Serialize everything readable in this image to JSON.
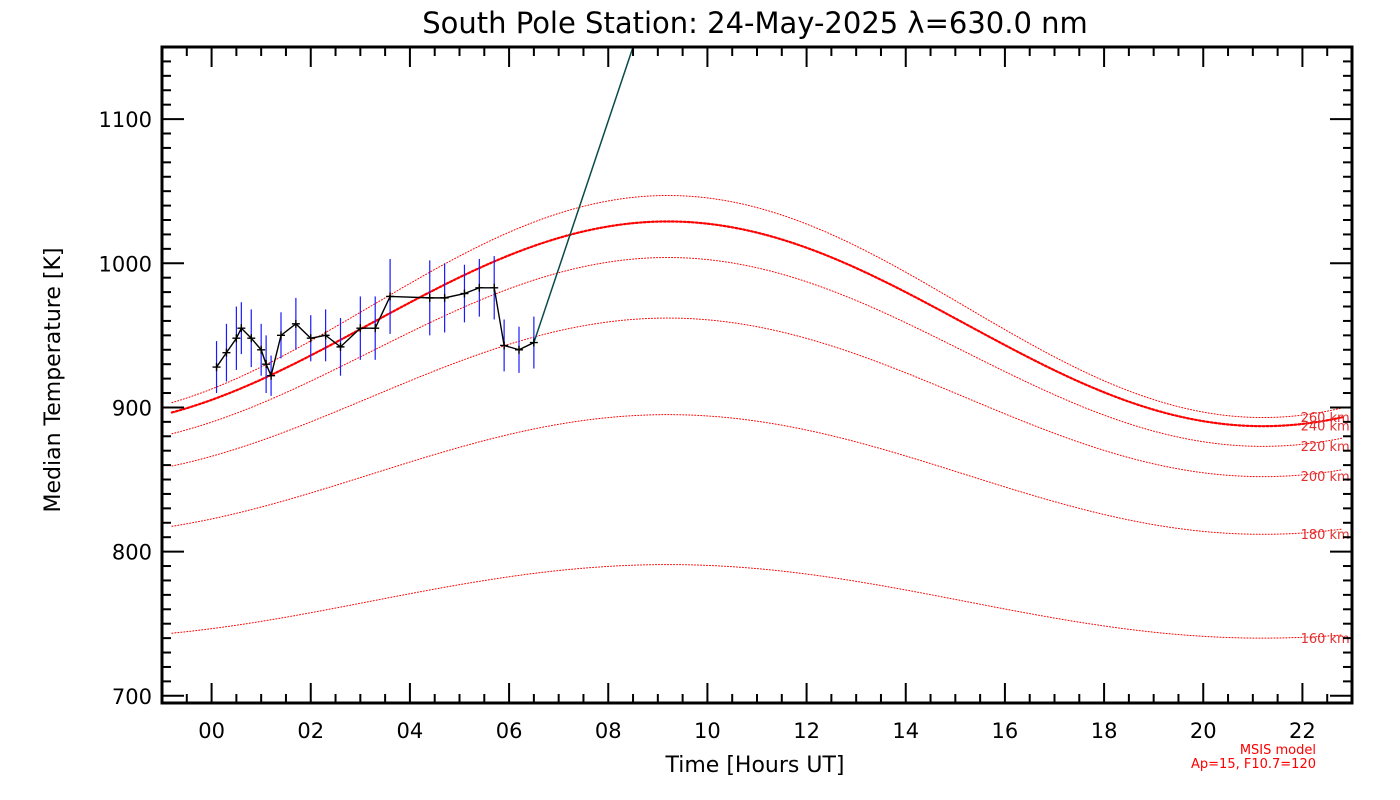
{
  "chart_data": {
    "type": "line",
    "title": "South Pole Station: 24-May-2025 λ=630.0 nm",
    "xlabel": "Time [Hours UT]",
    "ylabel": "Median Temperature [K]",
    "xlim": [
      -1.0,
      23.0
    ],
    "ylim": [
      695,
      1150
    ],
    "x_ticks": [
      0,
      2,
      4,
      6,
      8,
      10,
      12,
      14,
      16,
      18,
      20,
      22
    ],
    "x_tick_labels": [
      "00",
      "02",
      "04",
      "06",
      "08",
      "10",
      "12",
      "14",
      "16",
      "18",
      "20",
      "22"
    ],
    "y_ticks": [
      700,
      800,
      900,
      1000,
      1100
    ],
    "y_tick_labels": [
      "700",
      "800",
      "900",
      "1000",
      "1100"
    ],
    "msis_curves": [
      {
        "label": "160 km",
        "min": 740,
        "max": 791,
        "emphasized": false
      },
      {
        "label": "180 km",
        "min": 812,
        "max": 895,
        "emphasized": false
      },
      {
        "label": "200 km",
        "min": 852,
        "max": 962,
        "emphasized": false
      },
      {
        "label": "220 km",
        "min": 873,
        "max": 1004,
        "emphasized": false
      },
      {
        "label": "240 km",
        "min": 887,
        "max": 1029,
        "emphasized": true
      },
      {
        "label": "260 km",
        "min": 893,
        "max": 1047,
        "emphasized": false
      }
    ],
    "msis_peak_hour": 9.2,
    "measurements": {
      "x": [
        0.1,
        0.3,
        0.5,
        0.6,
        0.8,
        1.0,
        1.1,
        1.2,
        1.4,
        1.7,
        2.0,
        2.3,
        2.6,
        3.0,
        3.3,
        3.6,
        4.4,
        4.7,
        5.1,
        5.4,
        5.7,
        5.9,
        6.2,
        6.5
      ],
      "y": [
        928,
        938,
        948,
        955,
        948,
        940,
        930,
        922,
        950,
        958,
        948,
        950,
        942,
        955,
        955,
        977,
        976,
        976,
        979,
        983,
        983,
        943,
        940,
        945
      ],
      "err": [
        18,
        20,
        22,
        18,
        20,
        18,
        20,
        14,
        16,
        18,
        16,
        18,
        20,
        22,
        22,
        26,
        26,
        24,
        20,
        20,
        22,
        18,
        16,
        18
      ]
    },
    "fit_line": {
      "x": [
        6.5,
        8.5
      ],
      "y": [
        945,
        1150
      ]
    },
    "colors": {
      "model": "#ff0000",
      "model_label": "#e03030",
      "measurement": "#000000",
      "error_bar": "#1a1aff",
      "fit_line": "#0a4a4a"
    }
  },
  "model_note": {
    "line1": "MSIS model",
    "line2": "Ap=15, F10.7=120"
  }
}
